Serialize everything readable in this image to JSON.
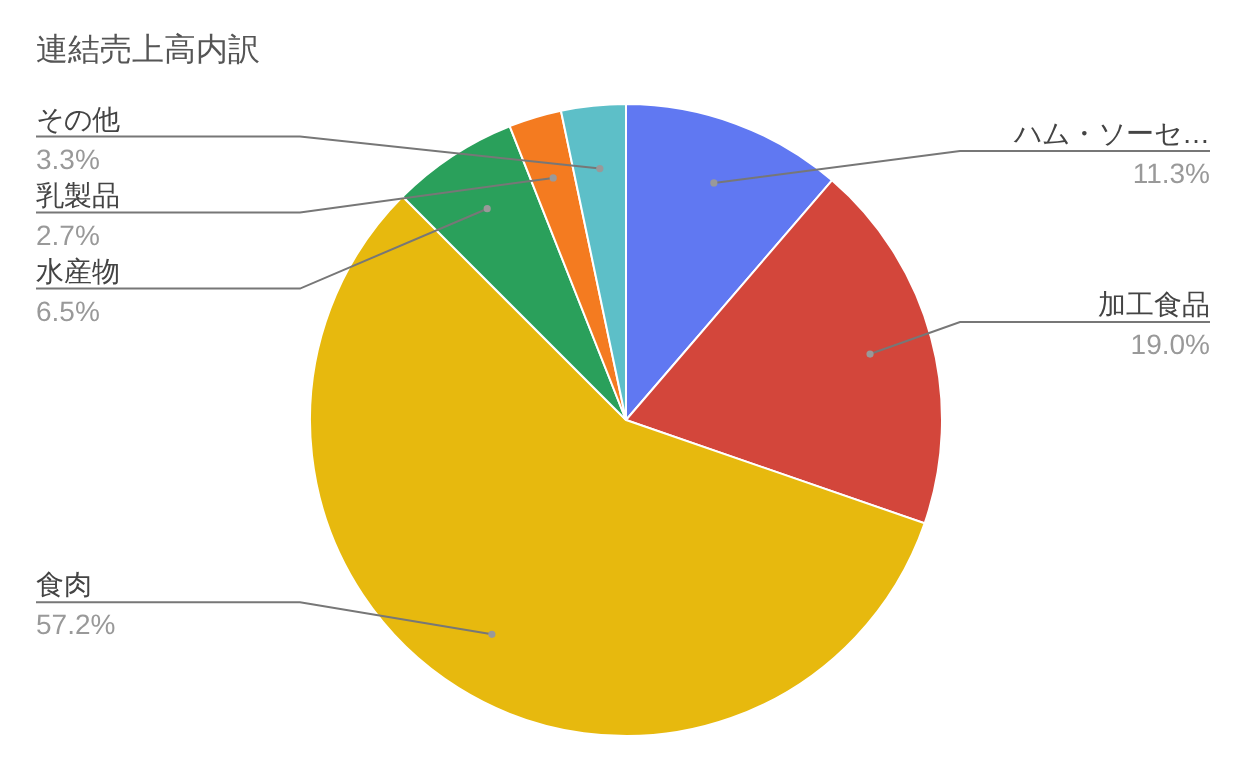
{
  "chart_data": {
    "type": "pie",
    "title": "連結売上高内訳",
    "categories": [
      "ハム・ソーセ…",
      "加工食品",
      "食肉",
      "水産物",
      "乳製品",
      "その他"
    ],
    "values": [
      11.3,
      19.0,
      57.2,
      6.5,
      2.7,
      3.3
    ],
    "colors": [
      "#6078f2",
      "#d3463b",
      "#e7b90e",
      "#2aa05b",
      "#f47b20",
      "#5dbfc8"
    ],
    "value_labels": [
      "11.3%",
      "19.0%",
      "57.2%",
      "6.5%",
      "2.7%",
      "3.3%"
    ]
  }
}
